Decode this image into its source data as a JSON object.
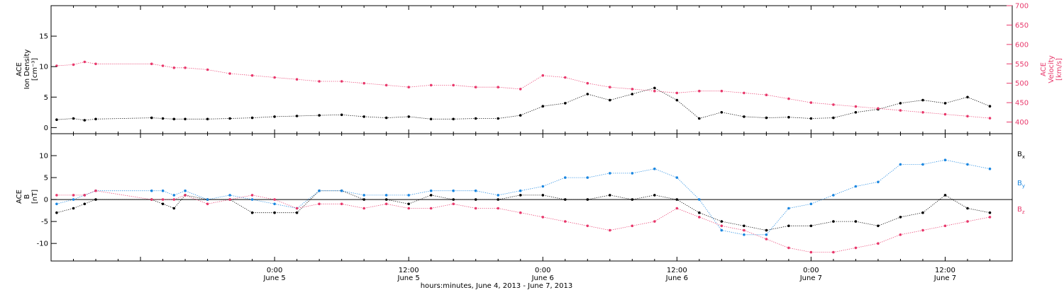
{
  "chart_data": [
    {
      "type": "scatter",
      "panel": "top",
      "ylabel_lines": [
        "ACE",
        "Ion Density",
        "[cm⁻³]"
      ],
      "ylabel2_lines": [
        "ACE",
        "Velocity",
        "[km/s]"
      ],
      "xlim_hours": [
        0,
        86
      ],
      "ylim": [
        -1,
        20
      ],
      "y_ticks": [
        0,
        5,
        10,
        15
      ],
      "ylim2": [
        370,
        700
      ],
      "y2_ticks": [
        400,
        450,
        500,
        550,
        600,
        650,
        700
      ],
      "grid": false,
      "series": [
        {
          "axis": "left",
          "color": "#000000",
          "x": [
            0.5,
            2,
            3,
            4,
            9,
            10,
            11,
            12,
            14,
            16,
            18,
            20,
            22,
            24,
            26,
            28,
            30,
            32,
            34,
            36,
            38,
            40,
            42,
            44,
            46,
            48,
            50,
            52,
            54,
            56,
            58,
            60,
            62,
            64,
            66,
            68,
            70,
            72,
            74,
            76,
            78,
            80,
            82,
            84
          ],
          "y": [
            1.3,
            1.5,
            1.2,
            1.4,
            1.6,
            1.5,
            1.4,
            1.4,
            1.4,
            1.5,
            1.6,
            1.8,
            1.9,
            2.0,
            2.1,
            1.8,
            1.6,
            1.8,
            1.4,
            1.4,
            1.5,
            1.5,
            2.0,
            3.5,
            4.0,
            5.5,
            4.5,
            5.5,
            6.5,
            4.5,
            1.5,
            2.5,
            1.8,
            1.6,
            1.7,
            1.5,
            1.6,
            2.5,
            3.0,
            4.0,
            4.5,
            4.0,
            5.0,
            3.5
          ]
        },
        {
          "axis": "right",
          "color": "#e8386b",
          "x": [
            0.5,
            2,
            3,
            4,
            9,
            10,
            11,
            12,
            14,
            16,
            18,
            20,
            22,
            24,
            26,
            28,
            30,
            32,
            34,
            36,
            38,
            40,
            42,
            44,
            46,
            48,
            50,
            52,
            54,
            56,
            58,
            60,
            62,
            64,
            66,
            68,
            70,
            72,
            74,
            76,
            78,
            80,
            82,
            84
          ],
          "y": [
            545,
            548,
            555,
            550,
            550,
            545,
            540,
            540,
            535,
            525,
            520,
            515,
            510,
            505,
            505,
            500,
            495,
            490,
            495,
            495,
            490,
            490,
            485,
            520,
            515,
            500,
            490,
            485,
            480,
            475,
            480,
            480,
            475,
            470,
            460,
            450,
            445,
            440,
            435,
            430,
            425,
            420,
            415,
            410
          ]
        }
      ]
    },
    {
      "type": "scatter",
      "panel": "bottom",
      "ylabel_lines": [
        "ACE",
        "B",
        "[nT]"
      ],
      "xlim_hours": [
        0,
        86
      ],
      "ylim": [
        -14,
        15
      ],
      "y_ticks": [
        -10,
        -5,
        0,
        5,
        10
      ],
      "zero_line": true,
      "grid": false,
      "legend_location": "right",
      "series": [
        {
          "name": "Bx",
          "color": "#000000",
          "x": [
            0.5,
            2,
            3,
            4,
            9,
            10,
            11,
            12,
            14,
            16,
            18,
            20,
            22,
            24,
            26,
            28,
            30,
            32,
            34,
            36,
            38,
            40,
            42,
            44,
            46,
            48,
            50,
            52,
            54,
            56,
            58,
            60,
            62,
            64,
            66,
            68,
            70,
            72,
            74,
            76,
            78,
            80,
            82,
            84
          ],
          "y": [
            -3,
            -2,
            -1,
            0,
            0,
            -1,
            -2,
            1,
            0,
            0,
            -3,
            -3,
            -3,
            2,
            2,
            0,
            0,
            -1,
            1,
            0,
            0,
            0,
            1,
            1,
            0,
            0,
            1,
            0,
            1,
            0,
            -3,
            -5,
            -6,
            -7,
            -6,
            -6,
            -5,
            -5,
            -6,
            -4,
            -3,
            1,
            -2,
            -3
          ]
        },
        {
          "name": "By",
          "color": "#1a86e0",
          "x": [
            0.5,
            2,
            3,
            4,
            9,
            10,
            11,
            12,
            14,
            16,
            18,
            20,
            22,
            24,
            26,
            28,
            30,
            32,
            34,
            36,
            38,
            40,
            42,
            44,
            46,
            48,
            50,
            52,
            54,
            56,
            58,
            60,
            62,
            64,
            66,
            68,
            70,
            72,
            74,
            76,
            78,
            80,
            82,
            84
          ],
          "y": [
            -1,
            0,
            1,
            2,
            2,
            2,
            1,
            2,
            0,
            1,
            0,
            -1,
            -2,
            2,
            2,
            1,
            1,
            1,
            2,
            2,
            2,
            1,
            2,
            3,
            5,
            5,
            6,
            6,
            7,
            5,
            0,
            -7,
            -8,
            -8,
            -2,
            -1,
            1,
            3,
            4,
            8,
            8,
            9,
            8,
            7
          ]
        },
        {
          "name": "Bz",
          "color": "#e8386b",
          "x": [
            0.5,
            2,
            3,
            4,
            9,
            10,
            11,
            12,
            14,
            16,
            18,
            20,
            22,
            24,
            26,
            28,
            30,
            32,
            34,
            36,
            38,
            40,
            42,
            44,
            46,
            48,
            50,
            52,
            54,
            56,
            58,
            60,
            62,
            64,
            66,
            68,
            70,
            72,
            74,
            76,
            78,
            80,
            82,
            84
          ],
          "y": [
            1,
            1,
            1,
            2,
            0,
            0,
            0,
            1,
            -1,
            0,
            1,
            0,
            -2,
            -1,
            -1,
            -2,
            -1,
            -2,
            -2,
            -1,
            -2,
            -2,
            -3,
            -4,
            -5,
            -6,
            -7,
            -6,
            -5,
            -2,
            -4,
            -6,
            -7,
            -9,
            -11,
            -12,
            -12,
            -11,
            -10,
            -8,
            -7,
            -6,
            -5,
            -4
          ]
        }
      ]
    }
  ],
  "x_axis": {
    "tick_labels": [
      {
        "hour": 20,
        "time": "0:00",
        "date": "June 5"
      },
      {
        "hour": 32,
        "time": "12:00",
        "date": "June 5"
      },
      {
        "hour": 44,
        "time": "0:00",
        "date": "June 6"
      },
      {
        "hour": 56,
        "time": "12:00",
        "date": "June 6"
      },
      {
        "hour": 68,
        "time": "0:00",
        "date": "June 7"
      },
      {
        "hour": 80,
        "time": "12:00",
        "date": "June 7"
      }
    ],
    "title": "hours:minutes, June  4, 2013 - June  7, 2013"
  },
  "legend": [
    {
      "base": "B",
      "sub": "x",
      "color": "#000000"
    },
    {
      "base": "B",
      "sub": "y",
      "color": "#1a86e0"
    },
    {
      "base": "B",
      "sub": "z",
      "color": "#e8386b"
    }
  ],
  "colors": {
    "axis": "#000000",
    "density": "#000000",
    "velocity": "#e8386b",
    "Bx": "#000000",
    "By": "#1a86e0",
    "Bz": "#e8386b"
  }
}
